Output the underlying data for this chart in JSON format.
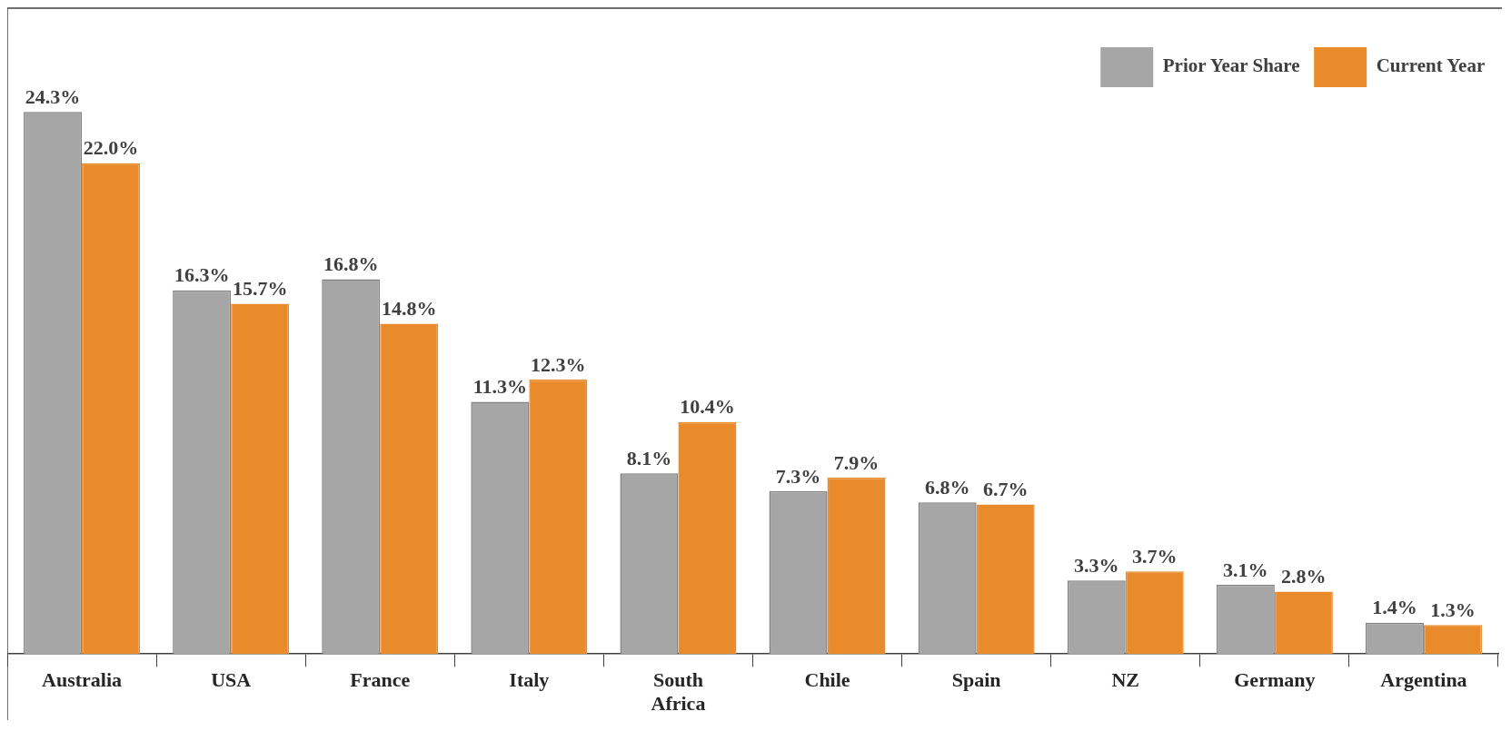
{
  "chart_data": {
    "type": "bar",
    "categories": [
      "Australia",
      "USA",
      "France",
      "Italy",
      "South Africa",
      "Chile",
      "Spain",
      "NZ",
      "Germany",
      "Argentina"
    ],
    "series": [
      {
        "name": "Prior Year Share",
        "color": "#a6a6a6",
        "values": [
          24.3,
          16.3,
          16.8,
          11.3,
          8.1,
          7.3,
          6.8,
          3.3,
          3.1,
          1.4
        ],
        "value_labels": [
          "24.3%",
          "16.3%",
          "16.8%",
          "11.3%",
          "8.1%",
          "7.3%",
          "6.8%",
          "3.3%",
          "3.1%",
          "1.4%"
        ]
      },
      {
        "name": "Current Year",
        "color": "#e98b2a",
        "values": [
          22.0,
          15.7,
          14.8,
          12.3,
          10.4,
          7.9,
          6.7,
          3.7,
          2.8,
          1.3
        ],
        "value_labels": [
          "22.0%",
          "15.7%",
          "14.8%",
          "12.3%",
          "10.4%",
          "7.9%",
          "6.7%",
          "3.7%",
          "2.8%",
          "1.3%"
        ]
      }
    ],
    "legend": "top right"
  }
}
